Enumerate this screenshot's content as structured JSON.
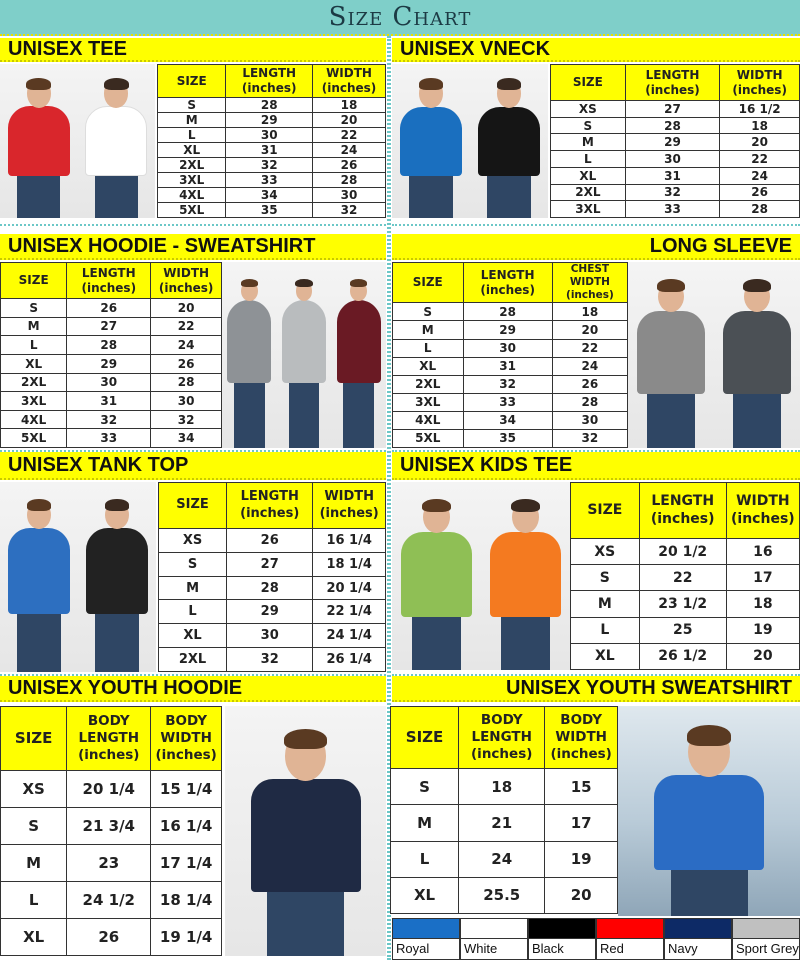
{
  "header": {
    "title": "Size Chart"
  },
  "sections": [
    {
      "id": "unisex-tee",
      "title": "UNISEX TEE",
      "align": "left",
      "headers": [
        [
          "SIZE"
        ],
        [
          "LENGTH",
          "(inches)"
        ],
        [
          "WIDTH",
          "(inches)"
        ]
      ],
      "rows": [
        [
          "S",
          "28",
          "18"
        ],
        [
          "M",
          "29",
          "20"
        ],
        [
          "L",
          "30",
          "22"
        ],
        [
          "XL",
          "31",
          "24"
        ],
        [
          "2XL",
          "32",
          "26"
        ],
        [
          "3XL",
          "33",
          "28"
        ],
        [
          "4XL",
          "34",
          "30"
        ],
        [
          "5XL",
          "35",
          "32"
        ]
      ],
      "shirt_colors": [
        "#d9262c",
        "#ffffff"
      ]
    },
    {
      "id": "unisex-vneck",
      "title": "UNISEX VNECK",
      "align": "left",
      "headers": [
        [
          "SIZE"
        ],
        [
          "LENGTH",
          "(inches)"
        ],
        [
          "WIDTH",
          "(inches)"
        ]
      ],
      "rows": [
        [
          "XS",
          "27",
          "16 1/2"
        ],
        [
          "S",
          "28",
          "18"
        ],
        [
          "M",
          "29",
          "20"
        ],
        [
          "L",
          "30",
          "22"
        ],
        [
          "XL",
          "31",
          "24"
        ],
        [
          "2XL",
          "32",
          "26"
        ],
        [
          "3XL",
          "33",
          "28"
        ]
      ],
      "shirt_colors": [
        "#1a6fbf",
        "#151515"
      ]
    },
    {
      "id": "unisex-hoodie-sweatshirt",
      "title": "UNISEX HOODIE - SWEATSHIRT",
      "align": "left",
      "headers": [
        [
          "SIZE"
        ],
        [
          "LENGTH",
          "(inches)"
        ],
        [
          "WIDTH",
          "(inches)"
        ]
      ],
      "rows": [
        [
          "S",
          "26",
          "20"
        ],
        [
          "M",
          "27",
          "22"
        ],
        [
          "L",
          "28",
          "24"
        ],
        [
          "XL",
          "29",
          "26"
        ],
        [
          "2XL",
          "30",
          "28"
        ],
        [
          "3XL",
          "31",
          "30"
        ],
        [
          "4XL",
          "32",
          "32"
        ],
        [
          "5XL",
          "33",
          "34"
        ]
      ],
      "shirt_colors": [
        "#8e9296",
        "#b9bcbe",
        "#6a1a24"
      ]
    },
    {
      "id": "long-sleeve",
      "title": "LONG SLEEVE",
      "align": "right",
      "headers": [
        [
          "SIZE"
        ],
        [
          "LENGTH",
          "(inches)"
        ],
        [
          "CHEST WIDTH",
          "(inches)"
        ]
      ],
      "rows": [
        [
          "S",
          "28",
          "18"
        ],
        [
          "M",
          "29",
          "20"
        ],
        [
          "L",
          "30",
          "22"
        ],
        [
          "XL",
          "31",
          "24"
        ],
        [
          "2XL",
          "32",
          "26"
        ],
        [
          "3XL",
          "33",
          "28"
        ],
        [
          "4XL",
          "34",
          "30"
        ],
        [
          "5XL",
          "35",
          "32"
        ]
      ],
      "shirt_colors": [
        "#8a8a8a",
        "#4b5055"
      ]
    },
    {
      "id": "unisex-tank-top",
      "title": "UNISEX TANK TOP",
      "align": "left",
      "headers": [
        [
          "SIZE"
        ],
        [
          "LENGTH",
          "(inches)"
        ],
        [
          "WIDTH",
          "(inches)"
        ]
      ],
      "rows": [
        [
          "XS",
          "26",
          "16 1/4"
        ],
        [
          "S",
          "27",
          "18 1/4"
        ],
        [
          "M",
          "28",
          "20 1/4"
        ],
        [
          "L",
          "29",
          "22 1/4"
        ],
        [
          "XL",
          "30",
          "24 1/4"
        ],
        [
          "2XL",
          "32",
          "26 1/4"
        ]
      ],
      "shirt_colors": [
        "#2d6fc0",
        "#222222"
      ]
    },
    {
      "id": "unisex-kids-tee",
      "title": "UNISEX KIDS TEE",
      "align": "left",
      "headers": [
        [
          "SIZE"
        ],
        [
          "LENGTH",
          "(inches)"
        ],
        [
          "WIDTH",
          "(inches)"
        ]
      ],
      "rows": [
        [
          "XS",
          "20 1/2",
          "16"
        ],
        [
          "S",
          "22",
          "17"
        ],
        [
          "M",
          "23 1/2",
          "18"
        ],
        [
          "L",
          "25",
          "19"
        ],
        [
          "XL",
          "26 1/2",
          "20"
        ]
      ],
      "shirt_colors": [
        "#8fbf55",
        "#f47a20"
      ]
    },
    {
      "id": "unisex-youth-hoodie",
      "title": "UNISEX YOUTH HOODIE",
      "align": "left",
      "headers": [
        [
          "SIZE"
        ],
        [
          "BODY LENGTH",
          "(inches)"
        ],
        [
          "BODY WIDTH",
          "(inches)"
        ]
      ],
      "rows": [
        [
          "XS",
          "20 1/4",
          "15 1/4"
        ],
        [
          "S",
          "21 3/4",
          "16 1/4"
        ],
        [
          "M",
          "23",
          "17 1/4"
        ],
        [
          "L",
          "24 1/2",
          "18 1/4"
        ],
        [
          "XL",
          "26",
          "19 1/4"
        ]
      ],
      "shirt_colors": [
        "#1f2a44"
      ]
    },
    {
      "id": "unisex-youth-sweatshirt",
      "title": "UNISEX YOUTH SWEATSHIRT",
      "align": "right",
      "headers": [
        [
          "SIZE"
        ],
        [
          "BODY LENGTH",
          "(inches)"
        ],
        [
          "BODY WIDTH",
          "(inches)"
        ]
      ],
      "rows": [
        [
          "S",
          "18",
          "15"
        ],
        [
          "M",
          "21",
          "17"
        ],
        [
          "L",
          "24",
          "19"
        ],
        [
          "XL",
          "25.5",
          "20"
        ]
      ],
      "shirt_colors": [
        "#2b6cc4"
      ]
    }
  ],
  "colors": [
    {
      "label": "Royal",
      "hex": "#1a6fc6"
    },
    {
      "label": "White",
      "hex": "#ffffff"
    },
    {
      "label": "Black",
      "hex": "#000000"
    },
    {
      "label": "Red",
      "hex": "#ff0000"
    },
    {
      "label": "Navy",
      "hex": "#0d2a66"
    },
    {
      "label": "Sport Grey",
      "hex": "#c0c0c0"
    }
  ]
}
